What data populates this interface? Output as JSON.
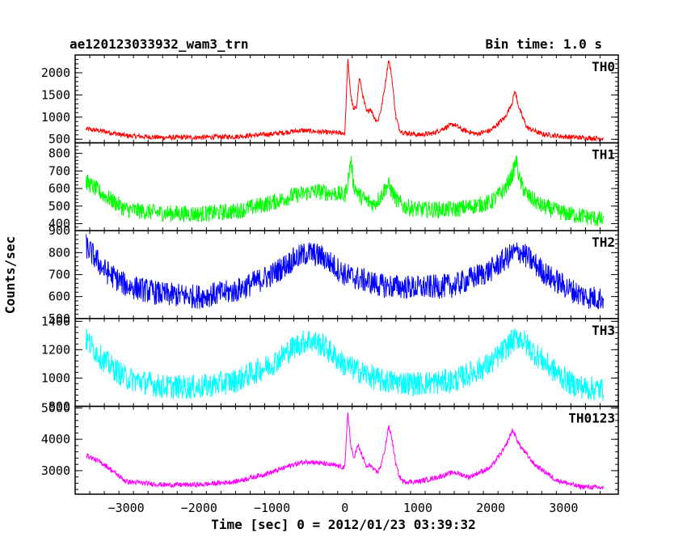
{
  "chart_data": {
    "type": "line",
    "title": "ae120123033932_wam3_trn",
    "subtitle": "Bin time: 1.0 s",
    "xlabel": "Time [sec] 0 = 2012/01/23 03:39:32",
    "ylabel": "Counts/sec",
    "xlim": [
      -3700,
      3750
    ],
    "x_ticks": [
      -3000,
      -2000,
      -1000,
      0,
      1000,
      2000,
      3000
    ],
    "panels": [
      {
        "name": "TH0",
        "color": "#ff0000",
        "ylim": [
          420,
          2400
        ],
        "y_ticks": [
          500,
          1000,
          1500,
          2000
        ],
        "noise": 35,
        "x": [
          -3550,
          -3300,
          -3000,
          -2500,
          -2000,
          -1500,
          -1000,
          -600,
          -200,
          0,
          40,
          80,
          120,
          160,
          200,
          250,
          300,
          350,
          400,
          450,
          500,
          550,
          600,
          640,
          700,
          750,
          800,
          900,
          1000,
          1200,
          1400,
          1500,
          1600,
          1800,
          2000,
          2200,
          2300,
          2330,
          2400,
          2500,
          2700,
          3000,
          3300,
          3550
        ],
        "y": [
          730,
          680,
          580,
          540,
          545,
          560,
          620,
          700,
          650,
          640,
          2300,
          1500,
          1150,
          1250,
          1900,
          1450,
          1100,
          1200,
          1000,
          900,
          1200,
          1700,
          2300,
          1950,
          1000,
          720,
          650,
          630,
          600,
          630,
          780,
          840,
          720,
          620,
          700,
          1000,
          1350,
          1600,
          1150,
          760,
          620,
          560,
          530,
          520
        ]
      },
      {
        "name": "TH1",
        "color": "#00ff00",
        "ylim": [
          360,
          860
        ],
        "y_ticks": [
          400,
          500,
          600,
          700,
          800
        ],
        "noise": 30,
        "x": [
          -3550,
          -3300,
          -3000,
          -2500,
          -2000,
          -1500,
          -1000,
          -700,
          -400,
          -100,
          0,
          50,
          80,
          120,
          200,
          300,
          400,
          500,
          550,
          600,
          700,
          800,
          1000,
          1500,
          2000,
          2200,
          2300,
          2350,
          2400,
          2500,
          2700,
          3000,
          3300,
          3550
        ],
        "y": [
          640,
          560,
          480,
          460,
          455,
          470,
          520,
          560,
          585,
          570,
          560,
          660,
          770,
          620,
          560,
          530,
          510,
          560,
          600,
          620,
          540,
          500,
          480,
          480,
          520,
          600,
          680,
          760,
          640,
          560,
          500,
          460,
          440,
          420
        ]
      },
      {
        "name": "TH2",
        "color": "#0000ff",
        "ylim": [
          500,
          900
        ],
        "y_ticks": [
          500,
          600,
          700,
          800,
          900
        ],
        "noise": 35,
        "x": [
          -3550,
          -3300,
          -3000,
          -2500,
          -2000,
          -1500,
          -1000,
          -700,
          -500,
          -300,
          0,
          500,
          1000,
          1500,
          2000,
          2300,
          2400,
          2500,
          2800,
          3100,
          3300,
          3550
        ],
        "y": [
          830,
          720,
          650,
          610,
          600,
          625,
          700,
          770,
          800,
          780,
          700,
          650,
          640,
          650,
          720,
          795,
          805,
          780,
          690,
          630,
          600,
          590
        ]
      },
      {
        "name": "TH3",
        "color": "#00ffff",
        "ylim": [
          800,
          1420
        ],
        "y_ticks": [
          800,
          1000,
          1200,
          1400
        ],
        "noise": 55,
        "x": [
          -3550,
          -3300,
          -3000,
          -2500,
          -2000,
          -1500,
          -1000,
          -700,
          -500,
          -300,
          0,
          500,
          1000,
          1500,
          2000,
          2300,
          2400,
          2500,
          2800,
          3100,
          3300,
          3550
        ],
        "y": [
          1270,
          1120,
          1000,
          940,
          935,
          980,
          1100,
          1220,
          1270,
          1230,
          1090,
          980,
          960,
          980,
          1100,
          1260,
          1290,
          1230,
          1080,
          960,
          930,
          920
        ]
      },
      {
        "name": "TH0123",
        "color": "#ff00ff",
        "ylim": [
          2250,
          5050
        ],
        "y_ticks": [
          3000,
          4000,
          5000
        ],
        "noise": 50,
        "x": [
          -3550,
          -3300,
          -3000,
          -2500,
          -2000,
          -1500,
          -1000,
          -700,
          -500,
          -100,
          0,
          40,
          80,
          120,
          180,
          250,
          300,
          350,
          400,
          450,
          500,
          550,
          600,
          640,
          700,
          750,
          800,
          1000,
          1200,
          1500,
          1700,
          2000,
          2200,
          2300,
          2400,
          2600,
          2900,
          3200,
          3550
        ],
        "y": [
          3500,
          3200,
          2650,
          2550,
          2550,
          2650,
          2950,
          3200,
          3300,
          3150,
          3100,
          4900,
          3800,
          3400,
          3800,
          3400,
          3100,
          3200,
          3000,
          2950,
          3200,
          3700,
          4400,
          4100,
          3200,
          2800,
          2650,
          2650,
          2750,
          2950,
          2800,
          3100,
          3750,
          4300,
          3800,
          3200,
          2700,
          2500,
          2450
        ]
      }
    ]
  }
}
